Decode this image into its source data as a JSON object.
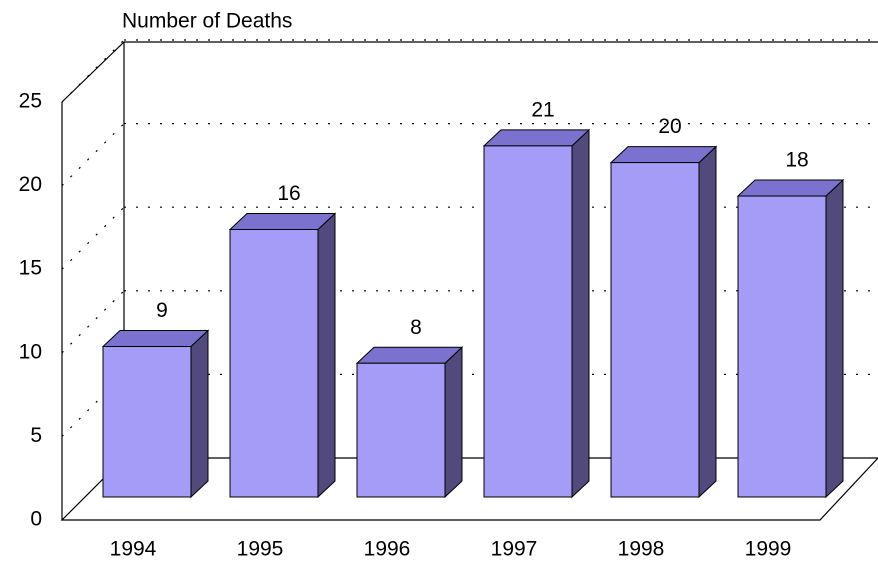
{
  "chart_data": {
    "type": "bar3d",
    "title": "Number of Deaths",
    "categories": [
      "1994",
      "1995",
      "1996",
      "1997",
      "1998",
      "1999"
    ],
    "values": [
      9,
      16,
      8,
      21,
      20,
      18
    ],
    "color": "#a59cf7",
    "ylim": [
      0,
      25
    ],
    "yticks": [
      0,
      5,
      10,
      15,
      20,
      25
    ],
    "grid": true
  }
}
